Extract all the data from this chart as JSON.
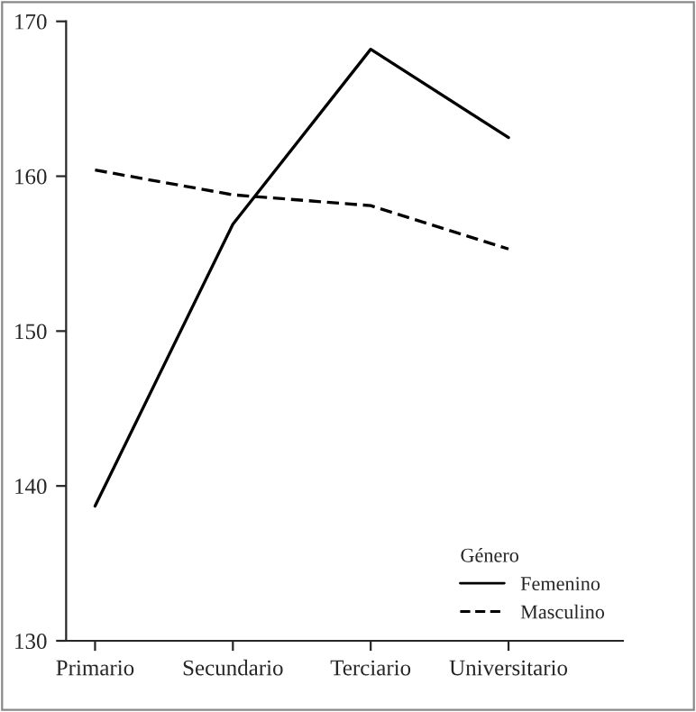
{
  "chart_data": {
    "type": "line",
    "categories": [
      "Primario",
      "Secundario",
      "Terciario",
      "Universitario"
    ],
    "series": [
      {
        "name": "Femenino",
        "color": "#000000",
        "line_style": "solid",
        "values": [
          138.7,
          156.9,
          168.2,
          162.5
        ]
      },
      {
        "name": "Masculino",
        "color": "#000000",
        "line_style": "dashed",
        "values": [
          160.4,
          158.8,
          158.1,
          155.3
        ]
      }
    ],
    "ylim": [
      130,
      170
    ],
    "yticks": [
      130,
      140,
      150,
      160,
      170
    ],
    "legend_title": "Género",
    "legend": "bottom right",
    "grid": false,
    "marker": "none"
  }
}
